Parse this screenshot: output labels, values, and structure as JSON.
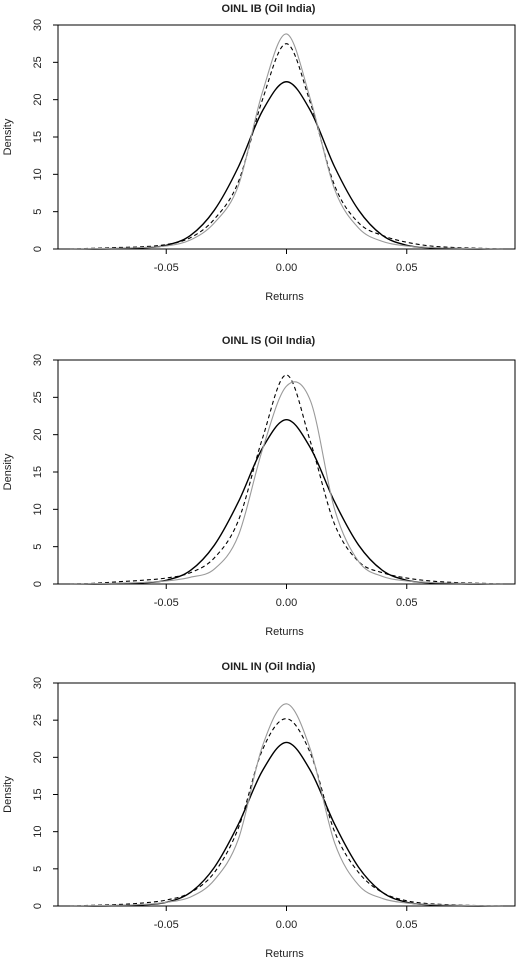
{
  "chart_data": [
    {
      "type": "line",
      "title": "OINL IB (Oil India)",
      "xlabel": "Returns",
      "ylabel": "Density",
      "xlim": [
        -0.095,
        0.095
      ],
      "ylim": [
        0,
        30
      ],
      "x_ticks": [
        -0.05,
        0.0,
        0.05
      ],
      "x_tick_labels": [
        "-0.05",
        "0.00",
        "0.05"
      ],
      "y_ticks": [
        0,
        5,
        10,
        15,
        20,
        25,
        30
      ],
      "y_tick_labels": [
        "0",
        "5",
        "10",
        "15",
        "20",
        "25",
        "30"
      ],
      "grid": false,
      "series": [
        {
          "style": "solid-black",
          "x": [
            -0.09,
            -0.08,
            -0.07,
            -0.06,
            -0.05,
            -0.04,
            -0.03,
            -0.02,
            -0.01,
            0.0,
            0.01,
            0.02,
            0.03,
            0.04,
            0.05,
            0.06,
            0.07,
            0.08,
            0.09
          ],
          "y": [
            0.0,
            0.0,
            0.05,
            0.15,
            0.5,
            1.8,
            5.2,
            11.0,
            18.5,
            22.4,
            18.5,
            11.0,
            5.2,
            1.8,
            0.5,
            0.15,
            0.05,
            0.0,
            0.0
          ]
        },
        {
          "style": "dashed-black",
          "x": [
            -0.09,
            -0.08,
            -0.07,
            -0.06,
            -0.05,
            -0.04,
            -0.03,
            -0.02,
            -0.01,
            0.0,
            0.01,
            0.02,
            0.03,
            0.04,
            0.05,
            0.06,
            0.07,
            0.08,
            0.09
          ],
          "y": [
            0.0,
            0.1,
            0.2,
            0.3,
            0.6,
            1.5,
            4.0,
            9.0,
            20.0,
            27.5,
            19.5,
            8.5,
            3.5,
            1.8,
            0.9,
            0.4,
            0.2,
            0.1,
            0.0
          ]
        },
        {
          "style": "solid-gray",
          "x": [
            -0.09,
            -0.08,
            -0.07,
            -0.06,
            -0.05,
            -0.04,
            -0.03,
            -0.02,
            -0.01,
            0.0,
            0.01,
            0.02,
            0.03,
            0.04,
            0.05,
            0.06,
            0.07,
            0.08,
            0.09
          ],
          "y": [
            0.0,
            0.05,
            0.1,
            0.2,
            0.4,
            1.2,
            3.5,
            8.5,
            21.0,
            28.8,
            20.0,
            8.0,
            2.8,
            1.0,
            0.4,
            0.2,
            0.1,
            0.05,
            0.0
          ]
        }
      ]
    },
    {
      "type": "line",
      "title": "OINL IS (Oil India)",
      "xlabel": "Returns",
      "ylabel": "Density",
      "xlim": [
        -0.095,
        0.095
      ],
      "ylim": [
        0,
        30
      ],
      "x_ticks": [
        -0.05,
        0.0,
        0.05
      ],
      "x_tick_labels": [
        "-0.05",
        "0.00",
        "0.05"
      ],
      "y_ticks": [
        0,
        5,
        10,
        15,
        20,
        25,
        30
      ],
      "y_tick_labels": [
        "0",
        "5",
        "10",
        "15",
        "20",
        "25",
        "30"
      ],
      "grid": false,
      "series": [
        {
          "style": "solid-black",
          "x": [
            -0.09,
            -0.08,
            -0.07,
            -0.06,
            -0.05,
            -0.04,
            -0.03,
            -0.02,
            -0.01,
            0.0,
            0.01,
            0.02,
            0.03,
            0.04,
            0.05,
            0.06,
            0.07,
            0.08,
            0.09
          ],
          "y": [
            0.0,
            0.0,
            0.05,
            0.15,
            0.5,
            1.8,
            5.2,
            11.0,
            18.2,
            22.0,
            18.2,
            11.0,
            5.2,
            1.8,
            0.5,
            0.15,
            0.05,
            0.0,
            0.0
          ]
        },
        {
          "style": "dashed-black",
          "x": [
            -0.09,
            -0.08,
            -0.07,
            -0.06,
            -0.05,
            -0.04,
            -0.03,
            -0.02,
            -0.01,
            0.0,
            0.01,
            0.02,
            0.03,
            0.04,
            0.05,
            0.06,
            0.07,
            0.08,
            0.09
          ],
          "y": [
            0.0,
            0.1,
            0.3,
            0.5,
            0.8,
            1.5,
            3.5,
            8.5,
            19.5,
            28.0,
            19.0,
            8.0,
            3.0,
            1.5,
            0.8,
            0.4,
            0.2,
            0.1,
            0.0
          ]
        },
        {
          "style": "solid-gray",
          "x": [
            -0.09,
            -0.08,
            -0.07,
            -0.06,
            -0.05,
            -0.04,
            -0.03,
            -0.02,
            -0.01,
            0.0,
            0.01,
            0.02,
            0.03,
            0.04,
            0.05,
            0.06,
            0.07,
            0.08,
            0.09
          ],
          "y": [
            0.0,
            0.05,
            0.1,
            0.2,
            0.4,
            0.9,
            2.0,
            6.5,
            18.0,
            26.5,
            24.5,
            10.0,
            3.0,
            1.0,
            0.4,
            0.2,
            0.1,
            0.05,
            0.0
          ]
        }
      ]
    },
    {
      "type": "line",
      "title": "OINL IN (Oil India)",
      "xlabel": "Returns",
      "ylabel": "Density",
      "xlim": [
        -0.095,
        0.095
      ],
      "ylim": [
        0,
        30
      ],
      "x_ticks": [
        -0.05,
        0.0,
        0.05
      ],
      "x_tick_labels": [
        "-0.05",
        "0.00",
        "0.05"
      ],
      "y_ticks": [
        0,
        5,
        10,
        15,
        20,
        25,
        30
      ],
      "y_tick_labels": [
        "0",
        "5",
        "10",
        "15",
        "20",
        "25",
        "30"
      ],
      "grid": false,
      "series": [
        {
          "style": "solid-black",
          "x": [
            -0.09,
            -0.08,
            -0.07,
            -0.06,
            -0.05,
            -0.04,
            -0.03,
            -0.02,
            -0.01,
            0.0,
            0.01,
            0.02,
            0.03,
            0.04,
            0.05,
            0.06,
            0.07,
            0.08,
            0.09
          ],
          "y": [
            0.0,
            0.0,
            0.05,
            0.15,
            0.5,
            1.8,
            5.2,
            11.0,
            18.2,
            22.0,
            18.2,
            11.0,
            5.2,
            1.8,
            0.5,
            0.15,
            0.05,
            0.0,
            0.0
          ]
        },
        {
          "style": "dashed-black",
          "x": [
            -0.09,
            -0.08,
            -0.07,
            -0.06,
            -0.05,
            -0.04,
            -0.03,
            -0.02,
            -0.01,
            0.0,
            0.01,
            0.02,
            0.03,
            0.04,
            0.05,
            0.06,
            0.07,
            0.08,
            0.09
          ],
          "y": [
            0.0,
            0.1,
            0.2,
            0.4,
            0.8,
            1.8,
            4.5,
            10.5,
            21.0,
            25.2,
            20.5,
            10.0,
            4.5,
            1.8,
            0.7,
            0.3,
            0.15,
            0.05,
            0.0
          ]
        },
        {
          "style": "solid-gray",
          "x": [
            -0.09,
            -0.08,
            -0.07,
            -0.06,
            -0.05,
            -0.04,
            -0.03,
            -0.02,
            -0.01,
            0.0,
            0.01,
            0.02,
            0.03,
            0.04,
            0.05,
            0.06,
            0.07,
            0.08,
            0.09
          ],
          "y": [
            0.0,
            0.05,
            0.1,
            0.2,
            0.5,
            1.2,
            3.5,
            9.0,
            21.5,
            27.2,
            21.0,
            8.5,
            2.8,
            1.0,
            0.4,
            0.2,
            0.1,
            0.05,
            0.0
          ]
        }
      ]
    }
  ]
}
